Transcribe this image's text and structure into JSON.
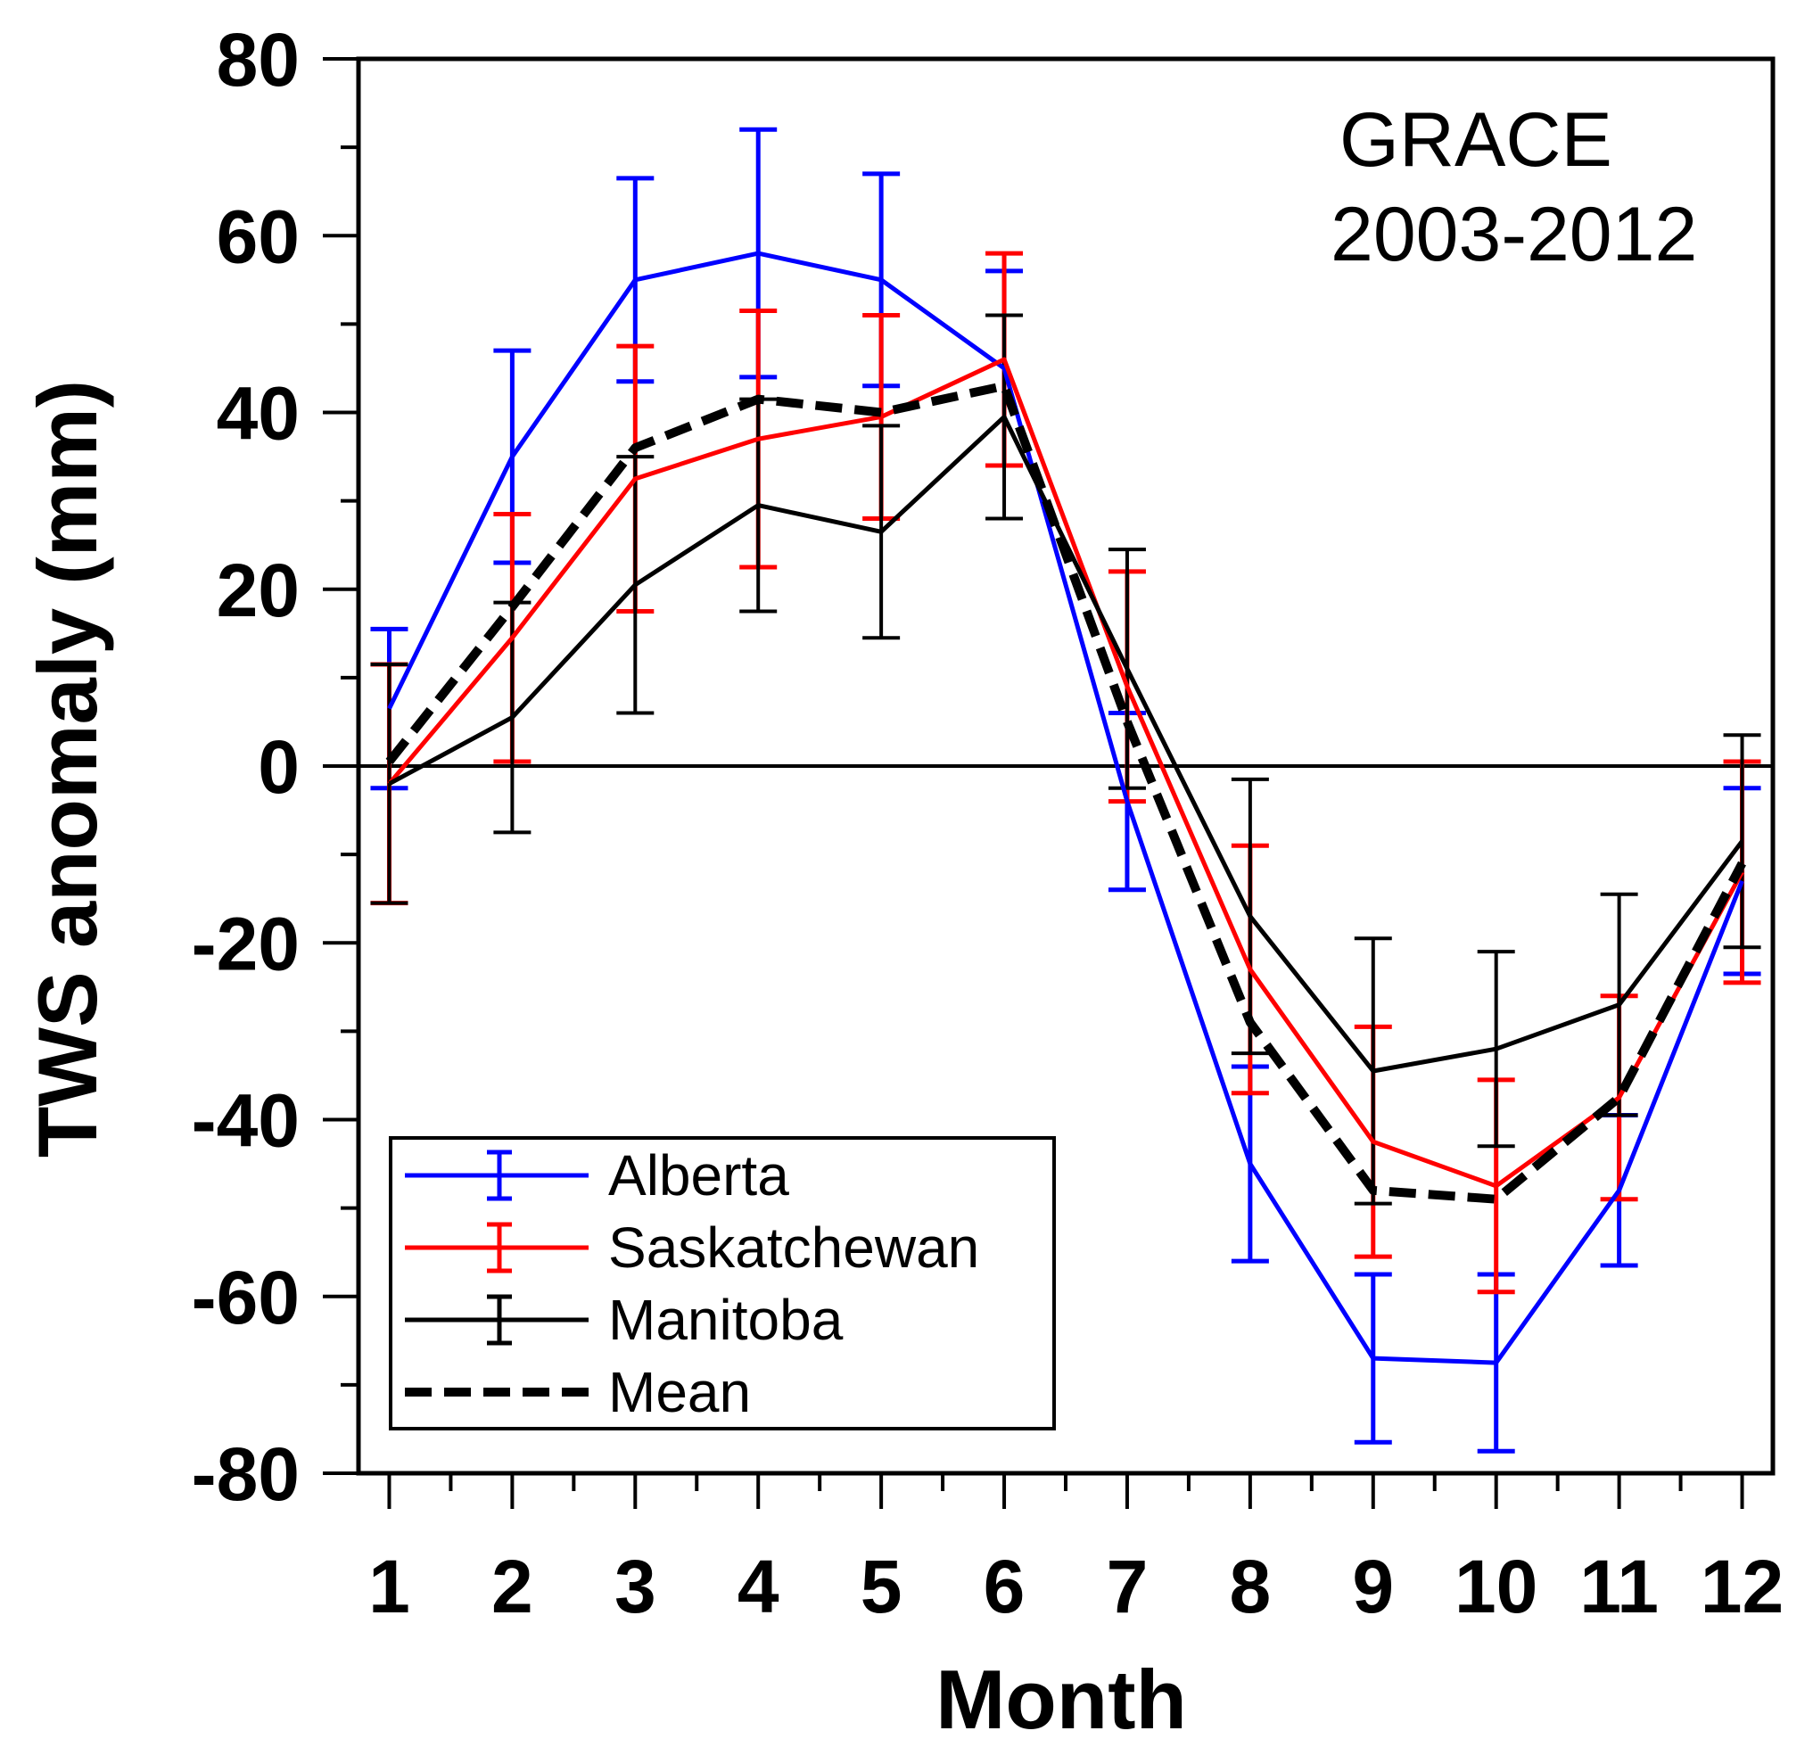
{
  "chart_data": {
    "type": "line",
    "title": "",
    "annotation": [
      "GRACE",
      "2003-2012"
    ],
    "xlabel": "Month",
    "ylabel": "TWS anomaly (mm)",
    "x": [
      1,
      2,
      3,
      4,
      5,
      6,
      7,
      8,
      9,
      10,
      11,
      12
    ],
    "x_tick_labels": [
      "1",
      "2",
      "3",
      "4",
      "5",
      "6",
      "7",
      "8",
      "9",
      "10",
      "11",
      "12"
    ],
    "xlim": [
      0.75,
      12.25
    ],
    "ylim": [
      -80,
      80
    ],
    "y_ticks": [
      -80,
      -60,
      -40,
      -20,
      0,
      20,
      40,
      60,
      80
    ],
    "y_tick_labels": [
      "-80",
      "-60",
      "-40",
      "-20",
      "0",
      "20",
      "40",
      "60",
      "80"
    ],
    "reference_line": 0,
    "grid": false,
    "legend_position": "bottom-left",
    "series": [
      {
        "name": "Alberta",
        "color": "#0000ff",
        "dash": "solid",
        "error_bars": true,
        "values": [
          6.5,
          35,
          55,
          58,
          55,
          45,
          -4,
          -45,
          -67,
          -67.5,
          -48,
          -13
        ],
        "errors": [
          9,
          12,
          11.5,
          14,
          12,
          11,
          10,
          11,
          9.5,
          10,
          8.5,
          10.5
        ]
      },
      {
        "name": "Saskatchewan",
        "color": "#ff0000",
        "dash": "solid",
        "error_bars": true,
        "values": [
          -2,
          14.5,
          32.5,
          37,
          39.5,
          46,
          9,
          -23,
          -42.5,
          -47.5,
          -37.5,
          -12
        ],
        "errors": [
          13.5,
          14,
          15,
          14.5,
          11.5,
          12,
          13,
          14,
          13,
          12,
          11.5,
          12.5
        ]
      },
      {
        "name": "Manitoba",
        "color": "#000000",
        "dash": "solid",
        "error_bars": true,
        "values": [
          -2,
          5.5,
          20.5,
          29.5,
          26.5,
          39.5,
          11,
          -17,
          -34.5,
          -32,
          -27,
          -8.5
        ],
        "errors": [
          13.5,
          13,
          14.5,
          12,
          12,
          11.5,
          13.5,
          15.5,
          15,
          11,
          12.5,
          12
        ]
      },
      {
        "name": "Mean",
        "color": "#000000",
        "dash": "dashed",
        "error_bars": false,
        "values": [
          0.5,
          18,
          36,
          41.5,
          40,
          43,
          5,
          -29,
          -48,
          -49,
          -37.5,
          -11
        ],
        "errors": []
      }
    ]
  }
}
